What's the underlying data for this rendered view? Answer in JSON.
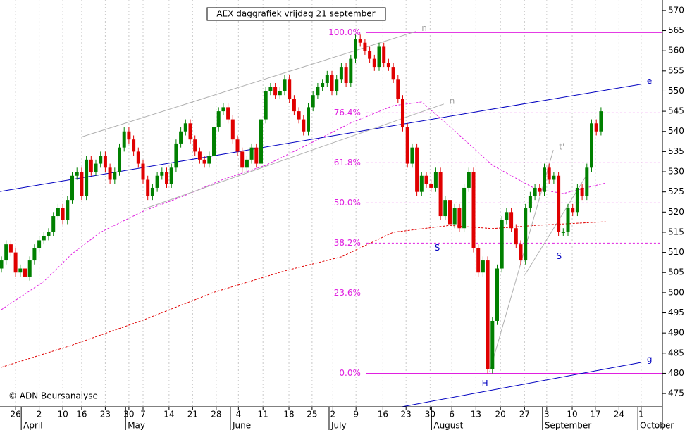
{
  "chart_data": {
    "type": "candlestick",
    "title": "AEX daggrafiek vrijdag 21 september",
    "source": "© ADN Beursanalyse",
    "up_color": "#008000",
    "down_color": "#e00000",
    "open": [
      506,
      508,
      512,
      510,
      505,
      506,
      504,
      508,
      511,
      513,
      514,
      515,
      519,
      521,
      518,
      523,
      529,
      530,
      524,
      533,
      530,
      532,
      534,
      531,
      528,
      530,
      536,
      540,
      538,
      535,
      532,
      528,
      524,
      526,
      529,
      530,
      527,
      531,
      537,
      540,
      542,
      538,
      535,
      533,
      532,
      534,
      541,
      545,
      546,
      543,
      538,
      535,
      531,
      533,
      536,
      532,
      543,
      550,
      551,
      549,
      550,
      553,
      548,
      545,
      543,
      540,
      546,
      549,
      551,
      552,
      554,
      550,
      553,
      556,
      552,
      558,
      563,
      562,
      560,
      558,
      556,
      561,
      557,
      556,
      553,
      548,
      541,
      532,
      536,
      525,
      529,
      527,
      526,
      530,
      519,
      523,
      517,
      521,
      516,
      526,
      530,
      511,
      505,
      508,
      481,
      493,
      506,
      518,
      520,
      516,
      512,
      508,
      521,
      524,
      526,
      525,
      531,
      528,
      529,
      515,
      515,
      521,
      520,
      526,
      524,
      531,
      542,
      540
    ],
    "high": [
      509,
      513,
      513,
      511,
      507,
      507,
      509,
      512,
      514,
      515,
      516,
      520,
      522,
      522,
      524,
      530,
      531,
      531,
      534,
      534,
      533,
      535,
      535,
      532,
      531,
      537,
      541,
      541,
      539,
      536,
      533,
      529,
      527,
      530,
      531,
      531,
      532,
      538,
      541,
      543,
      543,
      539,
      536,
      534,
      535,
      542,
      546,
      547,
      547,
      544,
      539,
      536,
      534,
      537,
      537,
      544,
      551,
      552,
      552,
      551,
      554,
      554,
      549,
      546,
      544,
      547,
      550,
      552,
      553,
      555,
      555,
      554,
      557,
      557,
      559,
      564,
      564,
      563,
      561,
      559,
      562,
      562,
      558,
      557,
      554,
      549,
      542,
      537,
      537,
      530,
      530,
      528,
      531,
      531,
      524,
      524,
      522,
      522,
      527,
      531,
      531,
      512,
      509,
      509,
      494,
      507,
      519,
      521,
      521,
      517,
      513,
      522,
      525,
      527,
      527,
      532,
      532,
      530,
      530,
      516,
      522,
      522,
      527,
      527,
      532,
      543,
      543,
      546
    ],
    "low": [
      505,
      507,
      509,
      504,
      504,
      503,
      503,
      507,
      510,
      512,
      513,
      514,
      518,
      517,
      517,
      522,
      528,
      523,
      523,
      529,
      529,
      531,
      530,
      527,
      527,
      529,
      535,
      537,
      534,
      531,
      527,
      523,
      523,
      525,
      528,
      526,
      526,
      530,
      536,
      539,
      537,
      534,
      532,
      531,
      531,
      533,
      540,
      544,
      542,
      537,
      534,
      530,
      530,
      532,
      531,
      531,
      542,
      549,
      548,
      548,
      549,
      547,
      544,
      542,
      539,
      539,
      545,
      548,
      550,
      551,
      549,
      549,
      552,
      551,
      551,
      557,
      561,
      559,
      557,
      555,
      555,
      556,
      555,
      552,
      547,
      540,
      531,
      531,
      524,
      524,
      526,
      525,
      525,
      518,
      518,
      516,
      516,
      515,
      515,
      525,
      510,
      504,
      504,
      480,
      480,
      492,
      505,
      517,
      515,
      511,
      507,
      507,
      520,
      523,
      524,
      524,
      527,
      527,
      514,
      514,
      514,
      519,
      519,
      523,
      523,
      530,
      539,
      539
    ],
    "close": [
      508,
      512,
      510,
      505,
      506,
      504,
      508,
      511,
      513,
      514,
      515,
      519,
      521,
      518,
      523,
      529,
      530,
      524,
      533,
      530,
      532,
      534,
      531,
      528,
      530,
      536,
      540,
      538,
      535,
      532,
      528,
      524,
      526,
      529,
      530,
      527,
      531,
      537,
      540,
      542,
      538,
      535,
      533,
      532,
      534,
      541,
      545,
      546,
      543,
      538,
      535,
      531,
      533,
      536,
      532,
      543,
      550,
      551,
      549,
      550,
      553,
      548,
      545,
      543,
      540,
      546,
      549,
      551,
      552,
      554,
      550,
      553,
      556,
      552,
      558,
      563,
      562,
      560,
      558,
      556,
      561,
      557,
      556,
      553,
      548,
      541,
      532,
      536,
      525,
      529,
      527,
      526,
      530,
      519,
      523,
      517,
      521,
      516,
      526,
      530,
      511,
      505,
      508,
      481,
      493,
      506,
      518,
      520,
      516,
      512,
      508,
      521,
      524,
      526,
      525,
      531,
      528,
      529,
      515,
      515,
      521,
      520,
      526,
      524,
      531,
      542,
      540,
      545
    ],
    "xlim": [
      -0.3,
      140
    ],
    "ylim": [
      471.7,
      572.6
    ],
    "yticks": [
      475,
      480,
      485,
      490,
      495,
      500,
      505,
      510,
      515,
      520,
      525,
      530,
      535,
      540,
      545,
      550,
      555,
      560,
      565,
      570
    ],
    "xticks": [
      {
        "value": 3,
        "label": "26"
      },
      {
        "value": 8,
        "label": "2"
      },
      {
        "value": 13,
        "label": "10"
      },
      {
        "value": 17,
        "label": "16"
      },
      {
        "value": 22,
        "label": "23"
      },
      {
        "value": 27,
        "label": "30"
      },
      {
        "value": 30,
        "label": "7"
      },
      {
        "value": 35.5,
        "label": "14"
      },
      {
        "value": 40.5,
        "label": "21"
      },
      {
        "value": 45.5,
        "label": "28"
      },
      {
        "value": 50.2,
        "label": "4"
      },
      {
        "value": 55.4,
        "label": "11"
      },
      {
        "value": 60.9,
        "label": "18"
      },
      {
        "value": 65.8,
        "label": "25"
      },
      {
        "value": 70.2,
        "label": "2"
      },
      {
        "value": 75.1,
        "label": "9"
      },
      {
        "value": 80.8,
        "label": "16"
      },
      {
        "value": 85.7,
        "label": "23"
      },
      {
        "value": 90.8,
        "label": "30"
      },
      {
        "value": 95.4,
        "label": "6"
      },
      {
        "value": 100.5,
        "label": "13"
      },
      {
        "value": 105.7,
        "label": "20"
      },
      {
        "value": 110.8,
        "label": "27"
      },
      {
        "value": 115.5,
        "label": "3"
      },
      {
        "value": 120.9,
        "label": "10"
      },
      {
        "value": 125.8,
        "label": "17"
      },
      {
        "value": 130.8,
        "label": "24"
      },
      {
        "value": 135.5,
        "label": "1"
      }
    ],
    "month_ticks": [
      {
        "value": 4.2,
        "label": "April"
      },
      {
        "value": 26.3,
        "label": "May"
      },
      {
        "value": 48.5,
        "label": "June"
      },
      {
        "value": 69.4,
        "label": "July"
      },
      {
        "value": 91.1,
        "label": "August"
      },
      {
        "value": 114.6,
        "label": "September"
      },
      {
        "value": 134.8,
        "label": "October"
      }
    ],
    "level_start_x": 77.3,
    "levels": [
      {
        "label": "100.0%",
        "value": 564.5
      },
      {
        "label": "76.4%",
        "value": 544.6
      },
      {
        "label": "61.8%",
        "value": 532.2
      },
      {
        "label": "50.0%",
        "value": 522.25
      },
      {
        "label": "38.2%",
        "value": 512.3
      },
      {
        "label": "23.6%",
        "value": 499.9
      },
      {
        "label": "0.0%",
        "value": 480
      }
    ],
    "level_color": "#e020e0",
    "moving_averages": [
      {
        "color": "#e020e0",
        "x": [
          0,
          9,
          15,
          21,
          30,
          38,
          47,
          56,
          65,
          74,
          83,
          89,
          95,
          104,
          113,
          119,
          128
        ],
        "values": [
          495.8,
          502.8,
          509.7,
          515,
          520.2,
          523.7,
          528.1,
          531.6,
          536.8,
          542.1,
          546.4,
          547.3,
          541.2,
          531.6,
          525.8,
          524.6,
          527.2
        ]
      },
      {
        "color": "#e00000",
        "x": [
          0,
          15,
          30,
          45,
          60,
          72,
          83,
          95,
          104,
          113,
          128
        ],
        "values": [
          481.5,
          487,
          493.2,
          500.1,
          505.4,
          508.9,
          515,
          516.7,
          515.9,
          516.7,
          517.6
        ]
      }
    ],
    "trendlines": [
      {
        "label": "e",
        "color": "#0000c0",
        "x": [
          -0.3,
          135.5
        ],
        "values": [
          525.1,
          551.7
        ]
      },
      {
        "label": "g",
        "color": "#0000c0",
        "x": [
          84.8,
          135.5
        ],
        "values": [
          471.7,
          482.7
        ]
      },
      {
        "label": "n'",
        "color": "#b0b0b0",
        "x": [
          16.9,
          87.8
        ],
        "values": [
          538.6,
          564.8
        ]
      },
      {
        "label": "n",
        "color": "#b0b0b0",
        "x": [
          30.3,
          93.7
        ],
        "values": [
          520.8,
          546.8
        ]
      },
      {
        "label": "t'",
        "color": "#b0b0b0",
        "x": [
          103.4,
          116.9
        ],
        "values": [
          480.4,
          535.4
        ]
      },
      {
        "color": "#b0b0b0",
        "x": [
          110.9,
          124.3
        ],
        "values": [
          504.5,
          529.8
        ]
      }
    ],
    "annotations": [
      {
        "text": "S",
        "x": 92.3,
        "y": 511.1
      },
      {
        "text": "S",
        "x": 118.1,
        "y": 509
      },
      {
        "text": "H",
        "x": 102.4,
        "y": 477.4
      }
    ],
    "annotation_color": "#0000c0"
  }
}
